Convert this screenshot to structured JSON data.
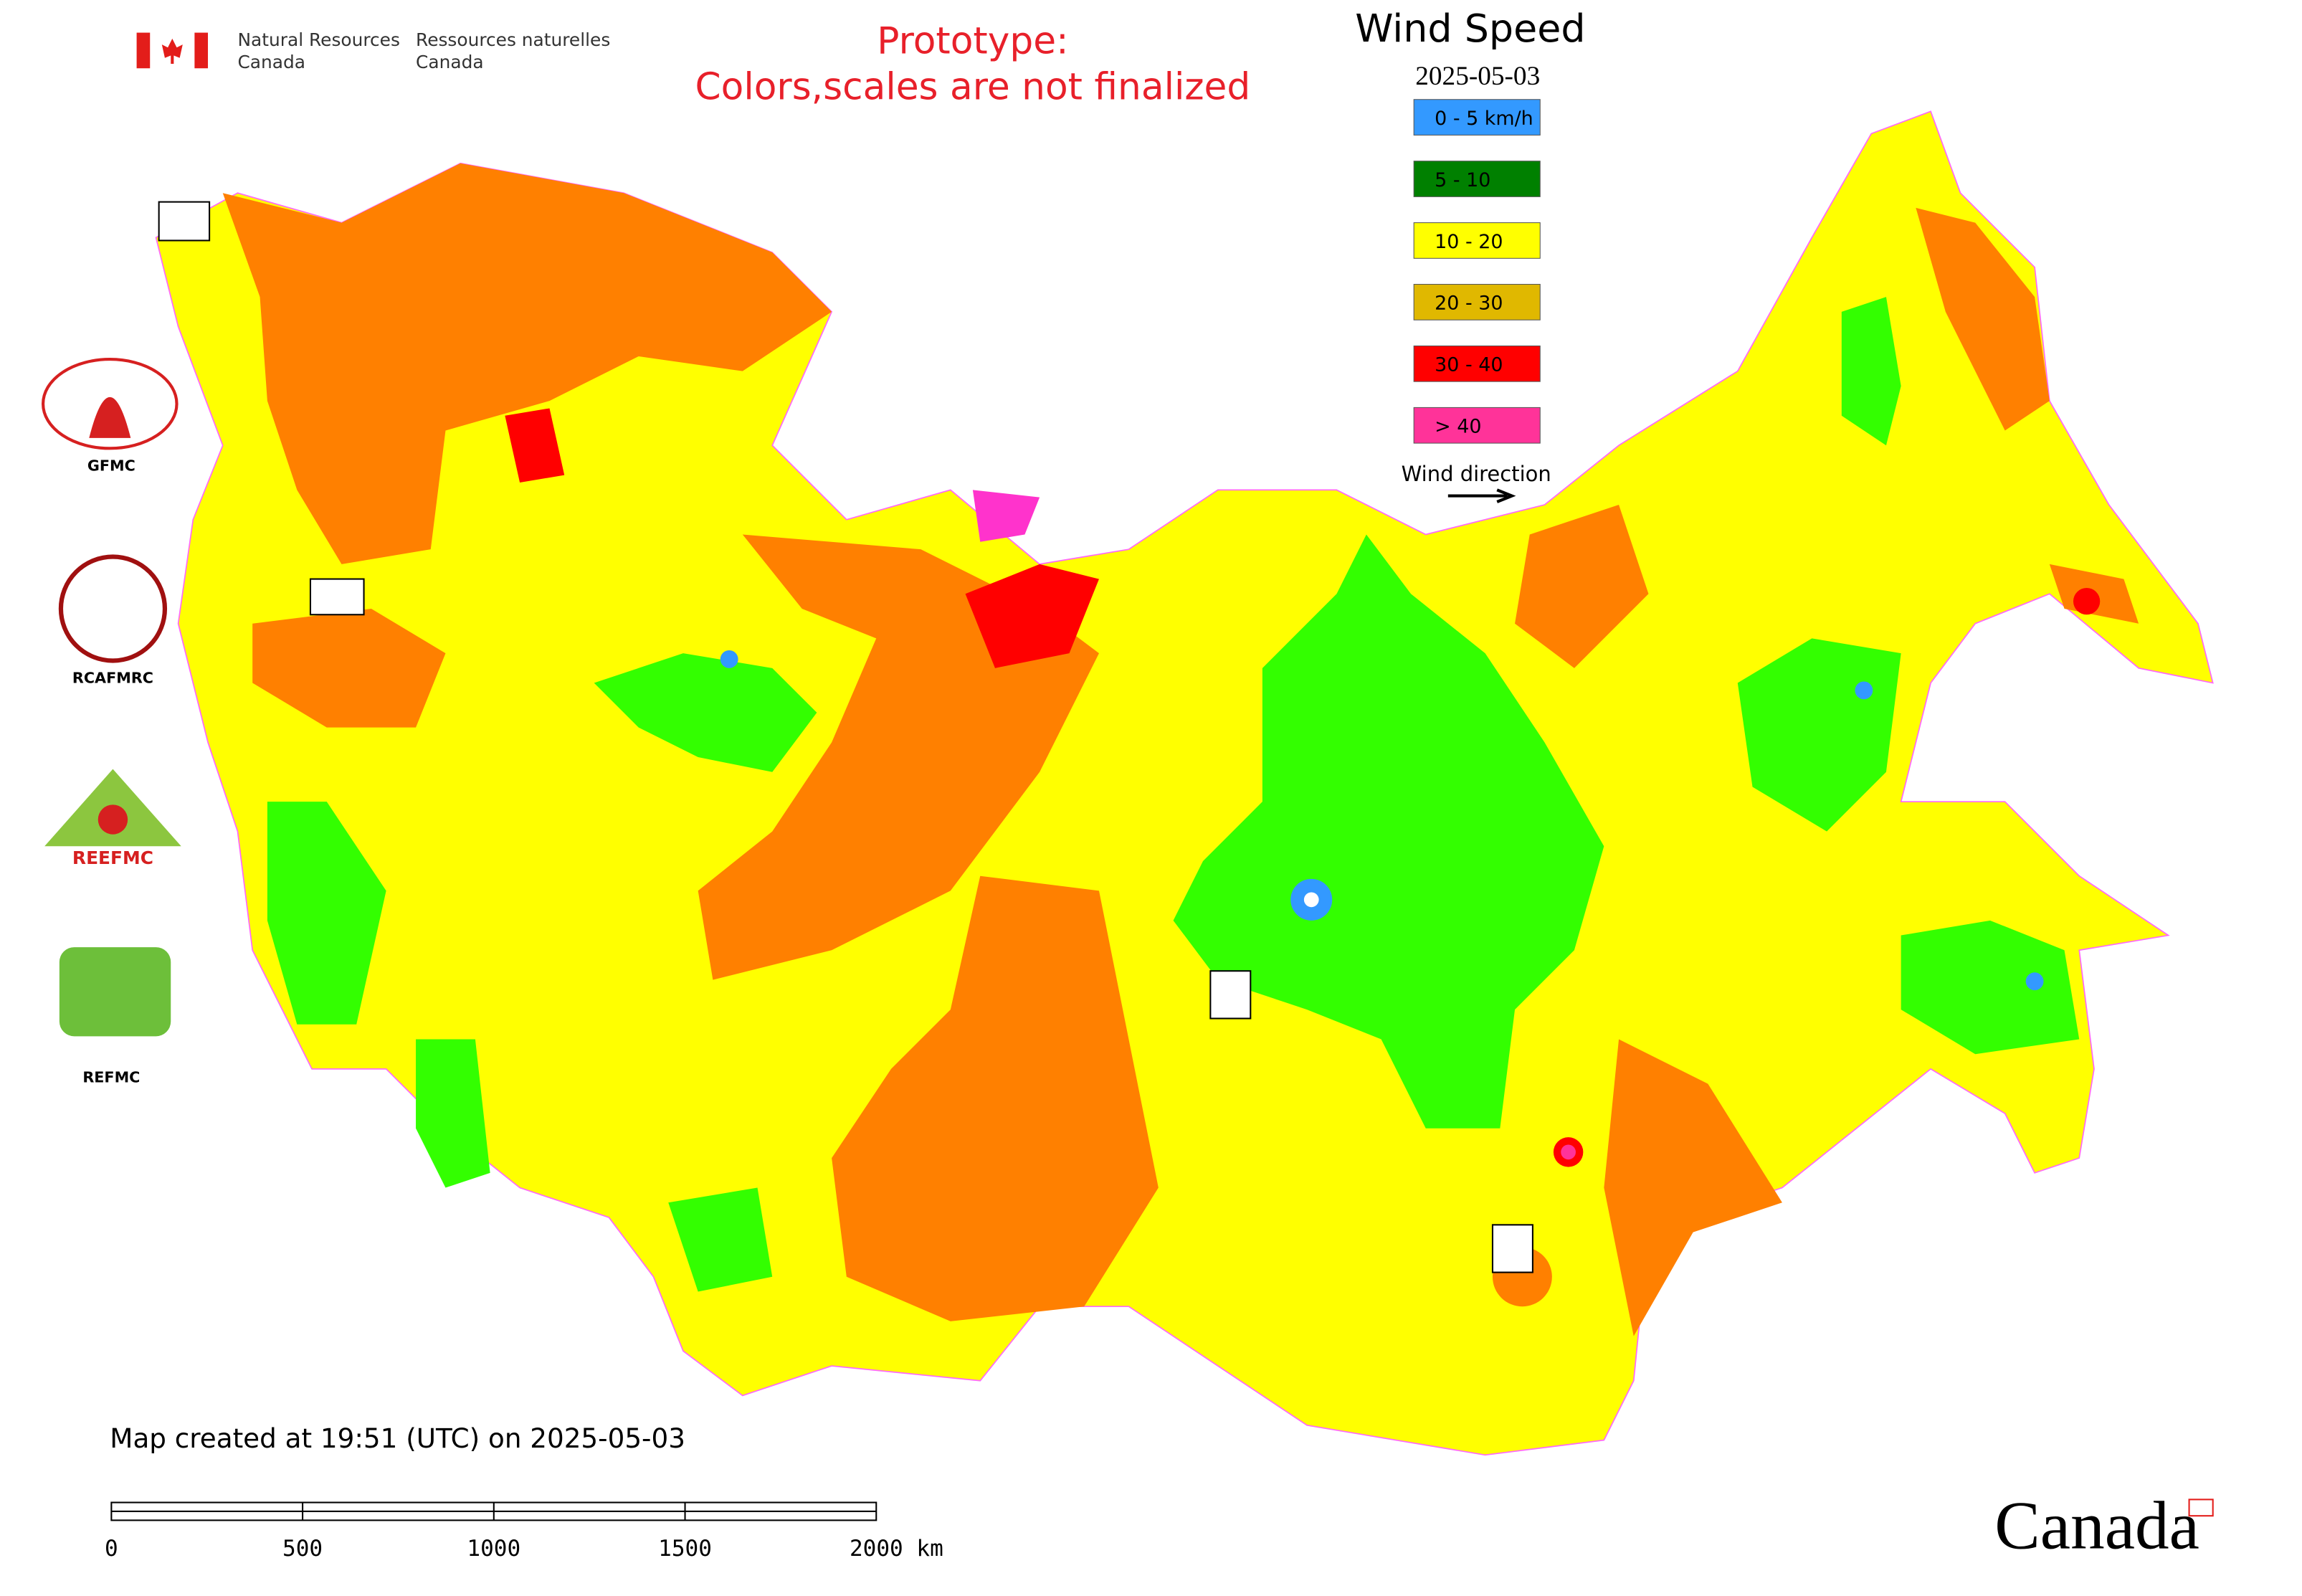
{
  "header": {
    "org_en": [
      "Natural Resources",
      "Canada"
    ],
    "org_fr": [
      "Ressources naturelles",
      "Canada"
    ],
    "notice": [
      "Prototype:",
      "Colors,scales are not finalized"
    ]
  },
  "legend": {
    "title": "Wind Speed",
    "date": "2025-05-03",
    "items": [
      {
        "label": "0 - 5 km/h",
        "color": "#3399ff"
      },
      {
        "label": "5 - 10",
        "color": "#008000"
      },
      {
        "label": "10 - 20",
        "color": "#ffff00"
      },
      {
        "label": "20 - 30",
        "color": "#e0b800"
      },
      {
        "label": "30 - 40",
        "color": "#ff0000"
      },
      {
        "label": "> 40",
        "color": "#ff3399"
      }
    ],
    "direction": "Wind direction"
  },
  "logos": [
    "GFMC",
    "RCAFMRC",
    "REEFMC",
    "REFMC"
  ],
  "footer": {
    "created": "Map created at 19:51 (UTC) on 2025-05-03",
    "scale": [
      "0",
      "500",
      "1000",
      "1500",
      "2000 km"
    ],
    "wordmark": "Canada"
  }
}
